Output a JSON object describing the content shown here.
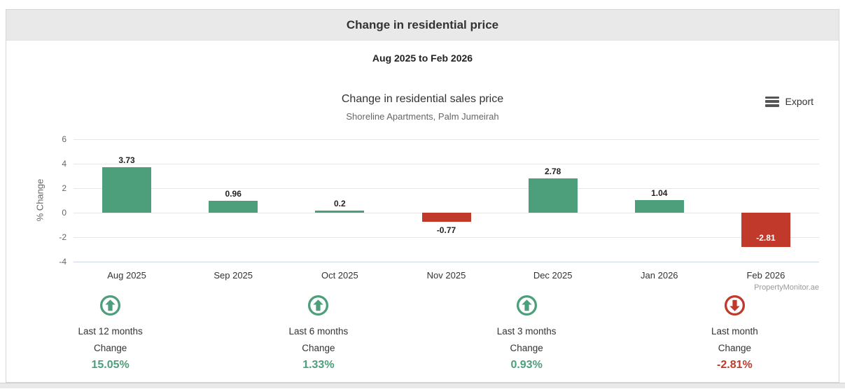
{
  "header": {
    "title": "Change in residential price"
  },
  "date_range_subtitle": "Aug 2025 to Feb 2026",
  "chart": {
    "export_label": "Export",
    "credits": "PropertyMonitor.ae"
  },
  "chart_data": {
    "type": "bar",
    "title": "Change in residential sales price",
    "subtitle": "Shoreline Apartments, Palm Jumeirah",
    "categories": [
      "Aug 2025",
      "Sep 2025",
      "Oct 2025",
      "Nov 2025",
      "Dec 2025",
      "Jan 2026",
      "Feb 2026"
    ],
    "values": [
      3.73,
      0.96,
      0.2,
      -0.77,
      2.78,
      1.04,
      -2.81
    ],
    "labels": [
      "3.73",
      "0.96",
      "0.2",
      "-0.77",
      "2.78",
      "1.04",
      "-2.81"
    ],
    "xlabel": "",
    "ylabel": "% Change",
    "yticks": [
      6,
      4,
      2,
      0,
      -2,
      -4
    ],
    "ylim": [
      -4,
      6
    ],
    "grid": true,
    "legend": false,
    "positive_color": "#4d9e7a",
    "negative_color": "#c1392b"
  },
  "summary": {
    "items": [
      {
        "period": "Last 12 months",
        "change_label": "Change",
        "value": "15.05%",
        "direction": "up"
      },
      {
        "period": "Last 6 months",
        "change_label": "Change",
        "value": "1.33%",
        "direction": "up"
      },
      {
        "period": "Last 3 months",
        "change_label": "Change",
        "value": "0.93%",
        "direction": "up"
      },
      {
        "period": "Last month",
        "change_label": "Change",
        "value": "-2.81%",
        "direction": "down"
      }
    ]
  },
  "colors": {
    "green": "#4d9e7a",
    "red": "#c1392b",
    "header_bg": "#e9e9e9",
    "gridline": "#e6e6e6",
    "axis_line": "#ccd6eb"
  }
}
